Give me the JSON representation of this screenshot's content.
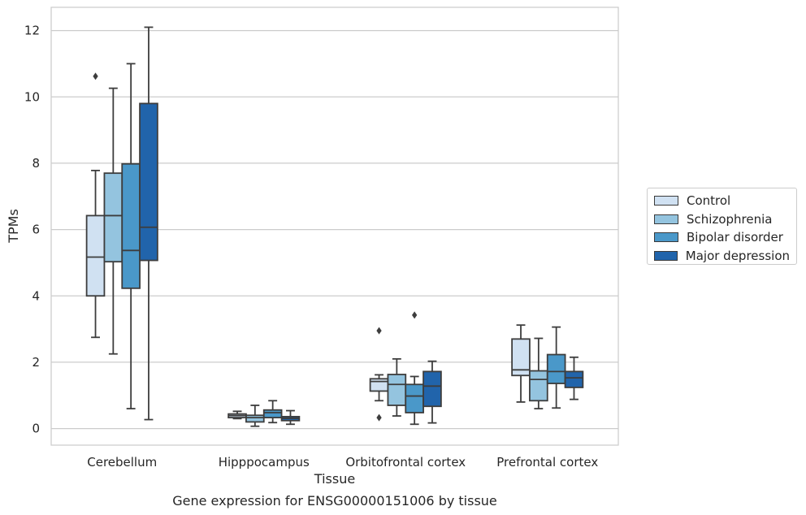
{
  "chart_data": {
    "type": "box",
    "title": "Gene expression for ENSG00000151006 by tissue",
    "xlabel": "Tissue",
    "ylabel": "TPMs",
    "ylim": [
      -0.5,
      12.7
    ],
    "yticks": [
      0,
      2,
      4,
      6,
      8,
      10,
      12
    ],
    "grid": "horizontal",
    "legend_position": "right",
    "categories": [
      "Cerebellum",
      "Hipppocampus",
      "Orbitofrontal cortex",
      "Prefrontal cortex"
    ],
    "series": [
      {
        "name": "Control",
        "color": "#d0e1f2",
        "boxes": [
          {
            "whislo": 2.75,
            "q1": 4.0,
            "med": 5.17,
            "q3": 6.42,
            "whishi": 7.78,
            "fliers": [
              10.62
            ]
          },
          {
            "whislo": 0.3,
            "q1": 0.33,
            "med": 0.39,
            "q3": 0.44,
            "whishi": 0.52,
            "fliers": []
          },
          {
            "whislo": 0.84,
            "q1": 1.13,
            "med": 1.42,
            "q3": 1.5,
            "whishi": 1.62,
            "fliers": [
              2.95,
              0.33
            ]
          },
          {
            "whislo": 0.8,
            "q1": 1.6,
            "med": 1.77,
            "q3": 2.7,
            "whishi": 3.12,
            "fliers": []
          }
        ]
      },
      {
        "name": "Schizophrenia",
        "color": "#94c4df",
        "boxes": [
          {
            "whislo": 2.25,
            "q1": 5.03,
            "med": 6.42,
            "q3": 7.7,
            "whishi": 10.26,
            "fliers": []
          },
          {
            "whislo": 0.07,
            "q1": 0.2,
            "med": 0.33,
            "q3": 0.4,
            "whishi": 0.7,
            "fliers": []
          },
          {
            "whislo": 0.38,
            "q1": 0.7,
            "med": 1.33,
            "q3": 1.63,
            "whishi": 2.1,
            "fliers": []
          },
          {
            "whislo": 0.6,
            "q1": 0.84,
            "med": 1.48,
            "q3": 1.74,
            "whishi": 2.72,
            "fliers": []
          }
        ]
      },
      {
        "name": "Bipolar disorder",
        "color": "#4a98c9",
        "boxes": [
          {
            "whislo": 0.6,
            "q1": 4.23,
            "med": 5.37,
            "q3": 7.98,
            "whishi": 11.0,
            "fliers": []
          },
          {
            "whislo": 0.18,
            "q1": 0.33,
            "med": 0.48,
            "q3": 0.56,
            "whishi": 0.84,
            "fliers": []
          },
          {
            "whislo": 0.13,
            "q1": 0.48,
            "med": 0.98,
            "q3": 1.33,
            "whishi": 1.57,
            "fliers": [
              3.42
            ]
          },
          {
            "whislo": 0.62,
            "q1": 1.36,
            "med": 1.72,
            "q3": 2.23,
            "whishi": 3.06,
            "fliers": []
          }
        ]
      },
      {
        "name": "Major depression",
        "color": "#2164ab",
        "boxes": [
          {
            "whislo": 0.27,
            "q1": 5.07,
            "med": 6.07,
            "q3": 9.8,
            "whishi": 12.1,
            "fliers": []
          },
          {
            "whislo": 0.13,
            "q1": 0.24,
            "med": 0.31,
            "q3": 0.36,
            "whishi": 0.54,
            "fliers": []
          },
          {
            "whislo": 0.17,
            "q1": 0.67,
            "med": 1.28,
            "q3": 1.72,
            "whishi": 2.03,
            "fliers": []
          },
          {
            "whislo": 0.88,
            "q1": 1.24,
            "med": 1.53,
            "q3": 1.72,
            "whishi": 2.15,
            "fliers": []
          }
        ]
      }
    ]
  }
}
